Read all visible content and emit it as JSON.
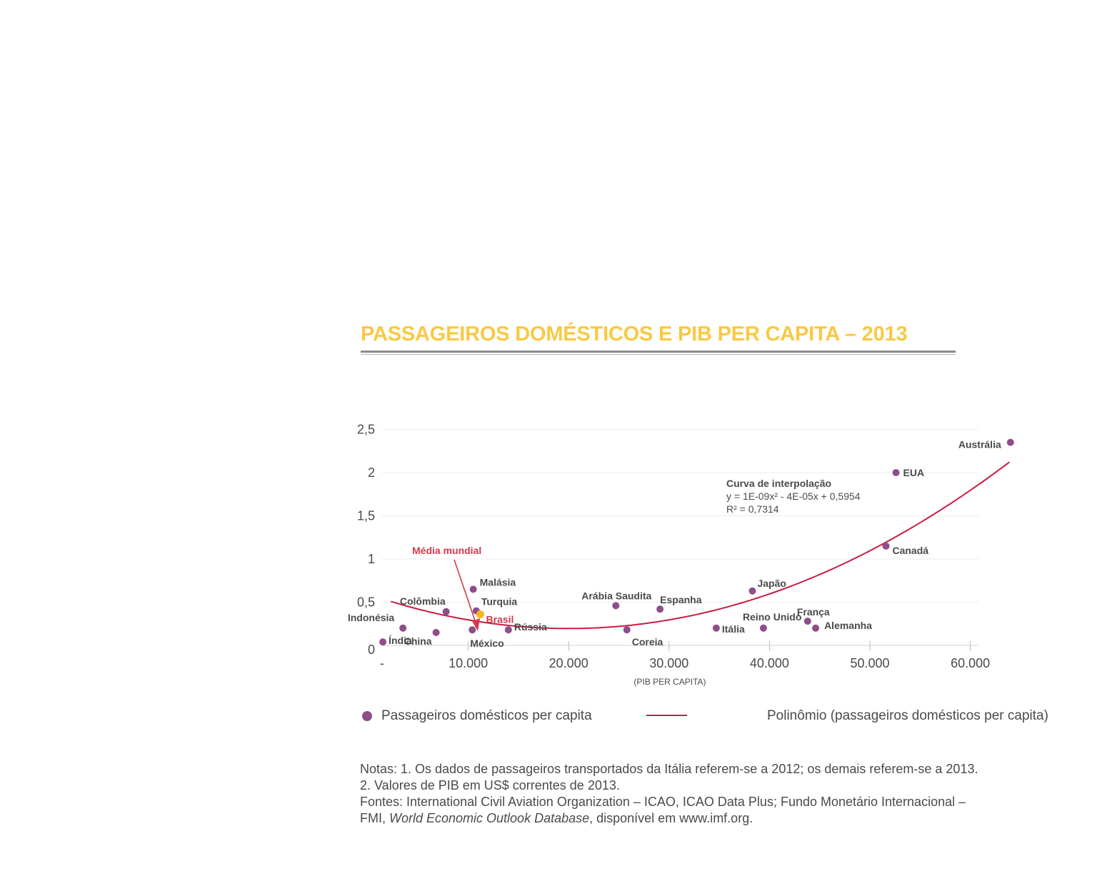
{
  "title": "PASSAGEIROS DOMÉSTICOS E PIB PER CAPITA – 2013",
  "colors": {
    "title": "#f9c943",
    "points": "#8e4e8a",
    "brazil_point": "#f5b920",
    "curve": "#c81d43",
    "highlight_text": "#d2394a"
  },
  "chart_data": {
    "type": "scatter",
    "title": "PASSAGEIROS DOMÉSTICOS E PIB PER CAPITA – 2013",
    "xlabel": "(PIB PER CAPITA)",
    "ylabel": "",
    "xlim": [
      0,
      62000
    ],
    "ylim": [
      0,
      2.5
    ],
    "x_ticks": [
      "-",
      "10.000",
      "20.000",
      "30.000",
      "40.000",
      "50.000",
      "60.000"
    ],
    "y_ticks": [
      "0",
      "0,5",
      "1",
      "1,5",
      "2",
      "2,5"
    ],
    "grid": true,
    "series": [
      {
        "name": "Passageiros domésticos per capita",
        "points": [
          {
            "label": "Índia",
            "x": 1500,
            "y": 0.04
          },
          {
            "label": "Indonésia",
            "x": 3500,
            "y": 0.2
          },
          {
            "label": "China",
            "x": 6800,
            "y": 0.15
          },
          {
            "label": "Colômbia",
            "x": 7800,
            "y": 0.39
          },
          {
            "label": "Malásia",
            "x": 10500,
            "y": 0.65
          },
          {
            "label": "Turquia",
            "x": 10800,
            "y": 0.4
          },
          {
            "label": "Brasil",
            "x": 11200,
            "y": 0.36
          },
          {
            "label": "México",
            "x": 10400,
            "y": 0.18
          },
          {
            "label": "Rússia",
            "x": 14000,
            "y": 0.18
          },
          {
            "label": "Arábia Saudita",
            "x": 24700,
            "y": 0.46
          },
          {
            "label": "Coreia",
            "x": 25800,
            "y": 0.18
          },
          {
            "label": "Espanha",
            "x": 29100,
            "y": 0.42
          },
          {
            "label": "Itália",
            "x": 34700,
            "y": 0.2
          },
          {
            "label": "Japão",
            "x": 38300,
            "y": 0.63
          },
          {
            "label": "Reino Unido",
            "x": 39400,
            "y": 0.2
          },
          {
            "label": "França",
            "x": 43800,
            "y": 0.28
          },
          {
            "label": "Alemanha",
            "x": 44600,
            "y": 0.2
          },
          {
            "label": "Canadá",
            "x": 51600,
            "y": 1.15
          },
          {
            "label": "EUA",
            "x": 52600,
            "y": 2.0
          },
          {
            "label": "Austrália",
            "x": 64000,
            "y": 2.35
          }
        ]
      },
      {
        "name": "Polinômio (passageiros domésticos per capita)",
        "type": "line",
        "equation_coefficients": {
          "a": 1e-09,
          "b": -4e-05,
          "c": 0.5954
        },
        "x_range": [
          0,
          63900
        ]
      }
    ],
    "annotations": {
      "world_average_label": "Média mundial",
      "curve_title": "Curva de interpolação",
      "curve_equation": "y = 1E-09x² - 4E-05x + 0,5954",
      "curve_r2": "R² = 0,7314"
    }
  },
  "legend": {
    "points_label": "Passageiros domésticos per capita",
    "line_label": "Polinômio (passageiros domésticos per capita)"
  },
  "notes": {
    "line1": "Notas: 1. Os dados de passageiros transportados da Itália referem-se a 2012; os demais referem-se a 2013.",
    "line2": "2. Valores de PIB em US$ correntes de 2013.",
    "line3": "Fontes: International Civil Aviation Organization – ICAO, ICAO Data Plus; Fundo Monetário Internacional –",
    "line4_prefix": "FMI, ",
    "line4_italic": "World Economic Outlook Database",
    "line4_suffix": ", disponível em www.imf.org."
  }
}
